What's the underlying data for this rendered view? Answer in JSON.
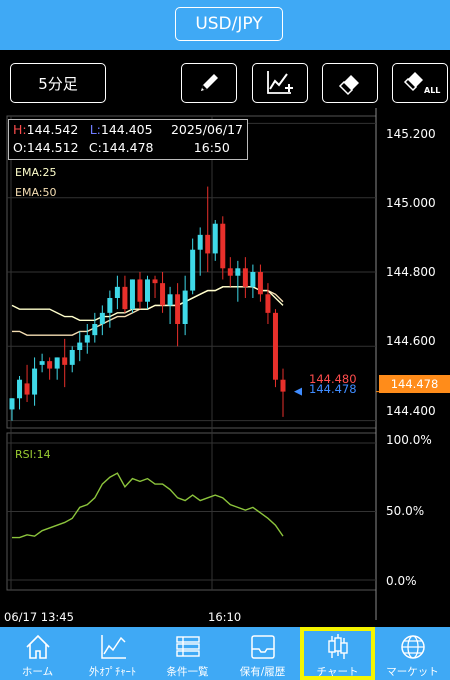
{
  "header": {
    "pair": "USD/JPY"
  },
  "toolbar": {
    "timeframe": "5分足",
    "tools": [
      "pencil-icon",
      "trendline-add-icon",
      "eraser-icon",
      "erase-all-icon"
    ],
    "erase_all_label": "ALL"
  },
  "ohlc": {
    "high_key": "H:",
    "high": "144.542",
    "low_key": "L:",
    "low": "144.405",
    "date": "2025/06/17",
    "open_key": "O:",
    "open": "144.512",
    "close_key": "C:",
    "close": "144.478",
    "time": "16:50"
  },
  "indicators": {
    "ema1": "EMA:25",
    "ema1_color": "#ffffcc",
    "ema2": "EMA:50",
    "ema2_color": "#f5deb3",
    "rsi": "RSI:14",
    "rsi_color": "#9acd32"
  },
  "price_axis": [
    "145.200",
    "145.000",
    "144.800",
    "144.600",
    "144.400"
  ],
  "rsi_axis": [
    "100.0%",
    "50.0%",
    "0.0%"
  ],
  "time_axis": [
    "06/17 13:45",
    "16:10"
  ],
  "current_price": "144.478",
  "ask_price": "144.480",
  "bid_price": "144.478",
  "colors": {
    "up": "#3fd9e8",
    "down": "#e8302b",
    "accent": "#3fa9f5",
    "price_tag": "#ff8c1a",
    "active_nav": "#f5f500",
    "rsi_line": "#8cc43c"
  },
  "chart_data": {
    "type": "candlestick",
    "price_range": [
      144.38,
      145.22
    ],
    "rsi_range": [
      0,
      100
    ],
    "candles": [
      {
        "o": 144.43,
        "h": 144.46,
        "l": 144.4,
        "c": 144.46
      },
      {
        "o": 144.46,
        "h": 144.52,
        "l": 144.43,
        "c": 144.51
      },
      {
        "o": 144.5,
        "h": 144.55,
        "l": 144.45,
        "c": 144.47
      },
      {
        "o": 144.47,
        "h": 144.57,
        "l": 144.44,
        "c": 144.54
      },
      {
        "o": 144.55,
        "h": 144.58,
        "l": 144.53,
        "c": 144.56
      },
      {
        "o": 144.56,
        "h": 144.57,
        "l": 144.51,
        "c": 144.54
      },
      {
        "o": 144.54,
        "h": 144.57,
        "l": 144.51,
        "c": 144.57
      },
      {
        "o": 144.57,
        "h": 144.62,
        "l": 144.49,
        "c": 144.55
      },
      {
        "o": 144.55,
        "h": 144.6,
        "l": 144.53,
        "c": 144.59
      },
      {
        "o": 144.59,
        "h": 144.64,
        "l": 144.56,
        "c": 144.61
      },
      {
        "o": 144.61,
        "h": 144.66,
        "l": 144.58,
        "c": 144.63
      },
      {
        "o": 144.63,
        "h": 144.69,
        "l": 144.61,
        "c": 144.66
      },
      {
        "o": 144.66,
        "h": 144.71,
        "l": 144.63,
        "c": 144.69
      },
      {
        "o": 144.69,
        "h": 144.75,
        "l": 144.65,
        "c": 144.73
      },
      {
        "o": 144.73,
        "h": 144.79,
        "l": 144.7,
        "c": 144.76
      },
      {
        "o": 144.76,
        "h": 144.79,
        "l": 144.69,
        "c": 144.7
      },
      {
        "o": 144.7,
        "h": 144.78,
        "l": 144.69,
        "c": 144.78
      },
      {
        "o": 144.78,
        "h": 144.8,
        "l": 144.7,
        "c": 144.72
      },
      {
        "o": 144.72,
        "h": 144.79,
        "l": 144.7,
        "c": 144.78
      },
      {
        "o": 144.78,
        "h": 144.79,
        "l": 144.73,
        "c": 144.77
      },
      {
        "o": 144.77,
        "h": 144.8,
        "l": 144.69,
        "c": 144.71
      },
      {
        "o": 144.71,
        "h": 144.76,
        "l": 144.66,
        "c": 144.74
      },
      {
        "o": 144.74,
        "h": 144.77,
        "l": 144.6,
        "c": 144.66
      },
      {
        "o": 144.66,
        "h": 144.79,
        "l": 144.63,
        "c": 144.75
      },
      {
        "o": 144.75,
        "h": 144.89,
        "l": 144.74,
        "c": 144.86
      },
      {
        "o": 144.86,
        "h": 144.92,
        "l": 144.79,
        "c": 144.9
      },
      {
        "o": 144.9,
        "h": 145.03,
        "l": 144.8,
        "c": 144.85
      },
      {
        "o": 144.85,
        "h": 144.94,
        "l": 144.83,
        "c": 144.93
      },
      {
        "o": 144.93,
        "h": 144.95,
        "l": 144.78,
        "c": 144.81
      },
      {
        "o": 144.81,
        "h": 144.84,
        "l": 144.76,
        "c": 144.79
      },
      {
        "o": 144.79,
        "h": 144.83,
        "l": 144.72,
        "c": 144.81
      },
      {
        "o": 144.81,
        "h": 144.84,
        "l": 144.73,
        "c": 144.76
      },
      {
        "o": 144.76,
        "h": 144.82,
        "l": 144.73,
        "c": 144.8
      },
      {
        "o": 144.8,
        "h": 144.82,
        "l": 144.72,
        "c": 144.74
      },
      {
        "o": 144.74,
        "h": 144.77,
        "l": 144.66,
        "c": 144.69
      },
      {
        "o": 144.69,
        "h": 144.7,
        "l": 144.49,
        "c": 144.51
      },
      {
        "o": 144.51,
        "h": 144.54,
        "l": 144.41,
        "c": 144.478
      }
    ],
    "ema25": [
      144.71,
      144.7,
      144.7,
      144.7,
      144.7,
      144.7,
      144.69,
      144.68,
      144.68,
      144.67,
      144.67,
      144.67,
      144.68,
      144.68,
      144.69,
      144.69,
      144.7,
      144.7,
      144.7,
      144.71,
      144.71,
      144.71,
      144.71,
      144.72,
      144.73,
      144.74,
      144.75,
      144.75,
      144.76,
      144.76,
      144.76,
      144.76,
      144.76,
      144.75,
      144.75,
      144.73,
      144.71
    ],
    "ema50": [
      144.64,
      144.64,
      144.63,
      144.63,
      144.63,
      144.63,
      144.63,
      144.63,
      144.63,
      144.64,
      144.64,
      144.65,
      144.66,
      144.67,
      144.68,
      144.68,
      144.69,
      144.7,
      144.7,
      144.71,
      144.71,
      144.71,
      144.71,
      144.72,
      144.73,
      144.74,
      144.75,
      144.75,
      144.76,
      144.76,
      144.76,
      144.76,
      144.76,
      144.75,
      144.75,
      144.74,
      144.72
    ],
    "rsi": [
      31,
      31,
      33,
      32,
      36,
      38,
      40,
      42,
      45,
      53,
      55,
      60,
      70,
      75,
      78,
      68,
      74,
      72,
      74,
      70,
      70,
      66,
      60,
      58,
      62,
      58,
      60,
      62,
      60,
      55,
      53,
      51,
      53,
      49,
      45,
      40,
      32
    ]
  }
}
